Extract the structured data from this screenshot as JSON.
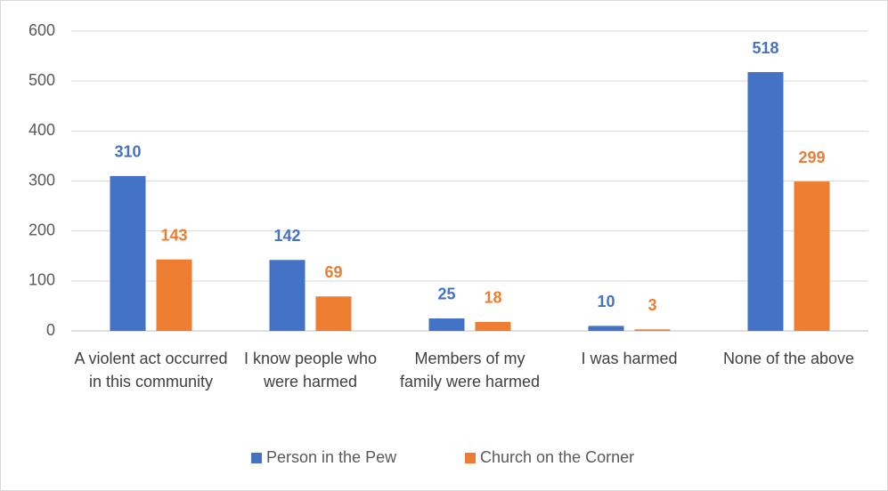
{
  "chart_data": {
    "type": "bar",
    "categories": [
      "A violent act occurred in this community",
      "I know people who were harmed",
      "Members of my family were harmed",
      "I was harmed",
      "None of the above"
    ],
    "series": [
      {
        "name": "Person in the Pew",
        "color": "#4472c4",
        "values": [
          310,
          142,
          25,
          10,
          518
        ]
      },
      {
        "name": "Church on the Corner",
        "color": "#ed7d31",
        "values": [
          143,
          69,
          18,
          3,
          299
        ]
      }
    ],
    "ylim": [
      0,
      600
    ],
    "yticks": [
      0,
      100,
      200,
      300,
      400,
      500,
      600
    ],
    "grid": true,
    "legend": "bottom",
    "data_labels": true
  }
}
